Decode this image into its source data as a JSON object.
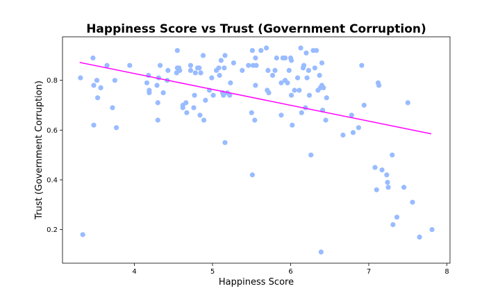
{
  "chart_data": {
    "type": "scatter",
    "title": "Happiness Score vs Trust (Government Corruption)",
    "xlabel": "Happiness Score",
    "ylabel": "Trust (Government Corruption)",
    "xlim": [
      3.08,
      8.04
    ],
    "ylim": [
      0.065,
      0.975
    ],
    "xticks": [
      4,
      5,
      6,
      7,
      8
    ],
    "yticks": [
      0.2,
      0.4,
      0.6,
      0.8
    ],
    "point_color": "#99bbff",
    "trend_color": "#ff00ff",
    "trend_line": {
      "x": [
        3.3,
        7.8
      ],
      "y": [
        0.872,
        0.585
      ]
    },
    "points": [
      {
        "x": 3.31,
        "y": 0.81
      },
      {
        "x": 3.34,
        "y": 0.18
      },
      {
        "x": 3.47,
        "y": 0.89
      },
      {
        "x": 3.48,
        "y": 0.78
      },
      {
        "x": 3.48,
        "y": 0.62
      },
      {
        "x": 3.52,
        "y": 0.8
      },
      {
        "x": 3.53,
        "y": 0.73
      },
      {
        "x": 3.57,
        "y": 0.77
      },
      {
        "x": 3.65,
        "y": 0.86
      },
      {
        "x": 3.72,
        "y": 0.69
      },
      {
        "x": 3.75,
        "y": 0.8
      },
      {
        "x": 3.77,
        "y": 0.61
      },
      {
        "x": 3.94,
        "y": 0.86
      },
      {
        "x": 4.16,
        "y": 0.79
      },
      {
        "x": 4.18,
        "y": 0.82
      },
      {
        "x": 4.19,
        "y": 0.76
      },
      {
        "x": 4.19,
        "y": 0.75
      },
      {
        "x": 4.29,
        "y": 0.78
      },
      {
        "x": 4.3,
        "y": 0.71
      },
      {
        "x": 4.31,
        "y": 0.81
      },
      {
        "x": 4.33,
        "y": 0.86
      },
      {
        "x": 4.3,
        "y": 0.64
      },
      {
        "x": 4.37,
        "y": 0.75
      },
      {
        "x": 4.42,
        "y": 0.8
      },
      {
        "x": 4.43,
        "y": 0.84
      },
      {
        "x": 4.54,
        "y": 0.83
      },
      {
        "x": 4.55,
        "y": 0.85
      },
      {
        "x": 4.55,
        "y": 0.92
      },
      {
        "x": 4.57,
        "y": 0.85
      },
      {
        "x": 4.58,
        "y": 0.84
      },
      {
        "x": 4.62,
        "y": 0.69
      },
      {
        "x": 4.62,
        "y": 0.7
      },
      {
        "x": 4.66,
        "y": 0.71
      },
      {
        "x": 4.67,
        "y": 0.67
      },
      {
        "x": 4.72,
        "y": 0.86
      },
      {
        "x": 4.72,
        "y": 0.84
      },
      {
        "x": 4.76,
        "y": 0.69
      },
      {
        "x": 4.77,
        "y": 0.74
      },
      {
        "x": 4.78,
        "y": 0.83
      },
      {
        "x": 4.81,
        "y": 0.85
      },
      {
        "x": 4.83,
        "y": 0.85
      },
      {
        "x": 4.84,
        "y": 0.66
      },
      {
        "x": 4.85,
        "y": 0.83
      },
      {
        "x": 4.88,
        "y": 0.9
      },
      {
        "x": 4.89,
        "y": 0.64
      },
      {
        "x": 4.91,
        "y": 0.72
      },
      {
        "x": 4.96,
        "y": 0.76
      },
      {
        "x": 4.99,
        "y": 0.81
      },
      {
        "x": 5.01,
        "y": 0.74
      },
      {
        "x": 5.05,
        "y": 0.84
      },
      {
        "x": 5.08,
        "y": 0.85
      },
      {
        "x": 5.09,
        "y": 0.82
      },
      {
        "x": 5.11,
        "y": 0.88
      },
      {
        "x": 5.13,
        "y": 0.75
      },
      {
        "x": 5.14,
        "y": 0.74
      },
      {
        "x": 5.15,
        "y": 0.85
      },
      {
        "x": 5.16,
        "y": 0.9
      },
      {
        "x": 5.16,
        "y": 0.55
      },
      {
        "x": 5.19,
        "y": 0.75
      },
      {
        "x": 5.22,
        "y": 0.74
      },
      {
        "x": 5.23,
        "y": 0.79
      },
      {
        "x": 5.27,
        "y": 0.87
      },
      {
        "x": 5.38,
        "y": 0.84
      },
      {
        "x": 5.46,
        "y": 0.86
      },
      {
        "x": 5.5,
        "y": 0.67
      },
      {
        "x": 5.51,
        "y": 0.92
      },
      {
        "x": 5.52,
        "y": 0.86
      },
      {
        "x": 5.51,
        "y": 0.42
      },
      {
        "x": 5.54,
        "y": 0.64
      },
      {
        "x": 5.55,
        "y": 0.78
      },
      {
        "x": 5.56,
        "y": 0.86
      },
      {
        "x": 5.55,
        "y": 0.89
      },
      {
        "x": 5.62,
        "y": 0.92
      },
      {
        "x": 5.69,
        "y": 0.93
      },
      {
        "x": 5.7,
        "y": 0.76
      },
      {
        "x": 5.71,
        "y": 0.84
      },
      {
        "x": 5.72,
        "y": 0.75
      },
      {
        "x": 5.77,
        "y": 0.82
      },
      {
        "x": 5.8,
        "y": 0.84
      },
      {
        "x": 5.82,
        "y": 0.89
      },
      {
        "x": 5.88,
        "y": 0.79
      },
      {
        "x": 5.88,
        "y": 0.66
      },
      {
        "x": 5.9,
        "y": 0.89
      },
      {
        "x": 5.93,
        "y": 0.89
      },
      {
        "x": 5.93,
        "y": 0.8
      },
      {
        "x": 5.96,
        "y": 0.79
      },
      {
        "x": 5.98,
        "y": 0.84
      },
      {
        "x": 6.0,
        "y": 0.89
      },
      {
        "x": 6.01,
        "y": 0.88
      },
      {
        "x": 6.01,
        "y": 0.74
      },
      {
        "x": 6.02,
        "y": 0.62
      },
      {
        "x": 6.05,
        "y": 0.76
      },
      {
        "x": 6.09,
        "y": 0.81
      },
      {
        "x": 6.11,
        "y": 0.76
      },
      {
        "x": 6.13,
        "y": 0.93
      },
      {
        "x": 6.14,
        "y": 0.67
      },
      {
        "x": 6.16,
        "y": 0.85
      },
      {
        "x": 6.17,
        "y": 0.86
      },
      {
        "x": 6.19,
        "y": 0.69
      },
      {
        "x": 6.2,
        "y": 0.91
      },
      {
        "x": 6.21,
        "y": 0.81
      },
      {
        "x": 6.23,
        "y": 0.84
      },
      {
        "x": 6.24,
        "y": 0.74
      },
      {
        "x": 6.26,
        "y": 0.5
      },
      {
        "x": 6.29,
        "y": 0.92
      },
      {
        "x": 6.31,
        "y": 0.85
      },
      {
        "x": 6.33,
        "y": 0.92
      },
      {
        "x": 6.35,
        "y": 0.76
      },
      {
        "x": 6.37,
        "y": 0.82
      },
      {
        "x": 6.38,
        "y": 0.77
      },
      {
        "x": 6.39,
        "y": 0.11
      },
      {
        "x": 6.4,
        "y": 0.87
      },
      {
        "x": 6.4,
        "y": 0.78
      },
      {
        "x": 6.41,
        "y": 0.68
      },
      {
        "x": 6.42,
        "y": 0.77
      },
      {
        "x": 6.45,
        "y": 0.64
      },
      {
        "x": 6.46,
        "y": 0.73
      },
      {
        "x": 6.67,
        "y": 0.58
      },
      {
        "x": 6.78,
        "y": 0.66
      },
      {
        "x": 6.8,
        "y": 0.59
      },
      {
        "x": 6.87,
        "y": 0.61
      },
      {
        "x": 6.91,
        "y": 0.86
      },
      {
        "x": 6.94,
        "y": 0.7
      },
      {
        "x": 7.08,
        "y": 0.45
      },
      {
        "x": 7.1,
        "y": 0.36
      },
      {
        "x": 7.12,
        "y": 0.79
      },
      {
        "x": 7.13,
        "y": 0.78
      },
      {
        "x": 7.17,
        "y": 0.44
      },
      {
        "x": 7.23,
        "y": 0.42
      },
      {
        "x": 7.24,
        "y": 0.39
      },
      {
        "x": 7.25,
        "y": 0.37
      },
      {
        "x": 7.3,
        "y": 0.5
      },
      {
        "x": 7.31,
        "y": 0.22
      },
      {
        "x": 7.36,
        "y": 0.25
      },
      {
        "x": 7.45,
        "y": 0.37
      },
      {
        "x": 7.5,
        "y": 0.71
      },
      {
        "x": 7.56,
        "y": 0.31
      },
      {
        "x": 7.65,
        "y": 0.17
      },
      {
        "x": 7.81,
        "y": 0.2
      }
    ]
  }
}
